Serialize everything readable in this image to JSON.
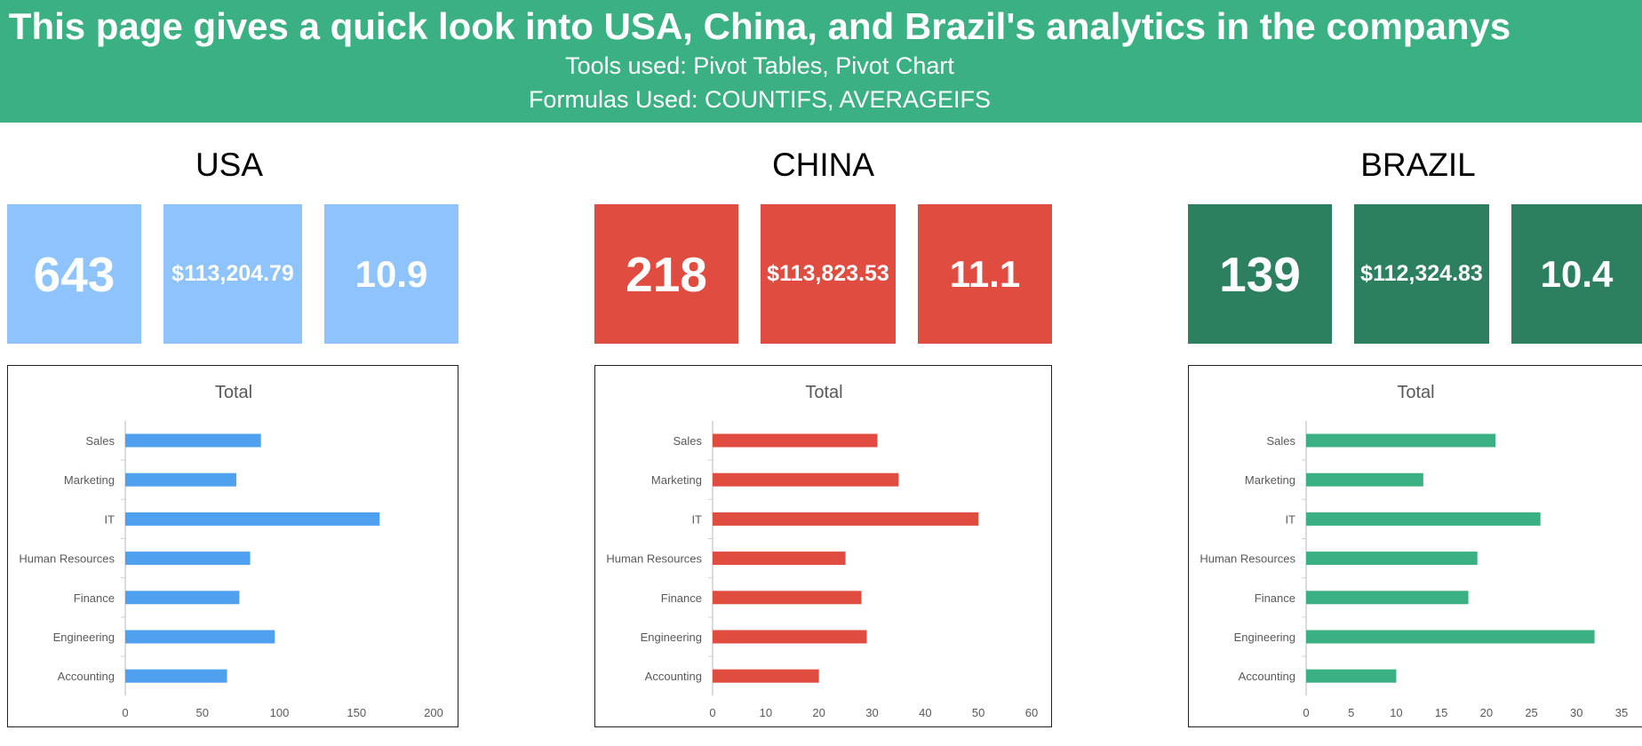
{
  "header": {
    "title": "This page gives a quick look into USA, China, and Brazil's analytics in the companys",
    "tools": "Tools used: Pivot Tables, Pivot Chart",
    "formulas": "Formulas Used: COUNTIFS, AVERAGEIFS"
  },
  "colors": {
    "header": "#3bb082",
    "usa": "#8ec4fb",
    "usa_bar": "#4fa0ef",
    "china": "#e04c40",
    "china_bar": "#e04c40",
    "brazil": "#2c8060",
    "brazil_bar": "#3bb082"
  },
  "countries": [
    {
      "name": "USA",
      "kpis": [
        "643",
        "$113,204.79",
        "10.9"
      ]
    },
    {
      "name": "CHINA",
      "kpis": [
        "218",
        "$113,823.53",
        "11.1"
      ]
    },
    {
      "name": "BRAZIL",
      "kpis": [
        "139",
        "$112,324.83",
        "10.4"
      ]
    }
  ],
  "chart_data": [
    {
      "type": "bar",
      "orientation": "horizontal",
      "title": "Total",
      "categories": [
        "Sales",
        "Marketing",
        "IT",
        "Human Resources",
        "Finance",
        "Engineering",
        "Accounting"
      ],
      "values": [
        88,
        72,
        165,
        81,
        74,
        97,
        66
      ],
      "xlim": [
        0,
        200
      ],
      "xticks": [
        "0",
        "50",
        "100",
        "150",
        "200"
      ],
      "grid": false,
      "legend": "none"
    },
    {
      "type": "bar",
      "orientation": "horizontal",
      "title": "Total",
      "categories": [
        "Sales",
        "Marketing",
        "IT",
        "Human Resources",
        "Finance",
        "Engineering",
        "Accounting"
      ],
      "values": [
        31,
        35,
        50,
        25,
        28,
        29,
        20
      ],
      "xlim": [
        0,
        60
      ],
      "xticks": [
        "0",
        "10",
        "20",
        "30",
        "40",
        "50",
        "60"
      ],
      "grid": false,
      "legend": "none"
    },
    {
      "type": "bar",
      "orientation": "horizontal",
      "title": "Total",
      "categories": [
        "Sales",
        "Marketing",
        "IT",
        "Human Resources",
        "Finance",
        "Engineering",
        "Accounting"
      ],
      "values": [
        21,
        13,
        26,
        19,
        18,
        32,
        10
      ],
      "xlim": [
        0,
        35
      ],
      "xticks": [
        "0",
        "5",
        "10",
        "15",
        "20",
        "25",
        "30",
        "35"
      ],
      "grid": false,
      "legend": "none"
    }
  ]
}
